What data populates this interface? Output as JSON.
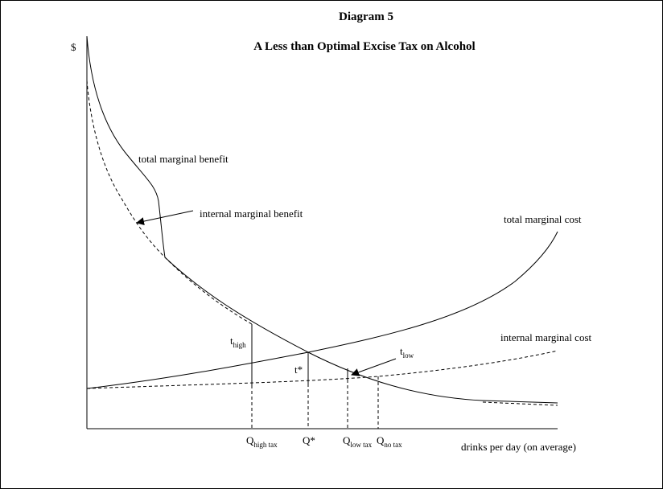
{
  "diagram": {
    "title": "Diagram 5",
    "subtitle": "A Less than Optimal Excise Tax on Alcohol",
    "y_axis_label": "$",
    "x_axis_label": "drinks per day (on average)",
    "curves": {
      "total_marginal_benefit": "total marginal benefit",
      "internal_marginal_benefit": "internal marginal benefit",
      "total_marginal_cost": "total marginal cost",
      "internal_marginal_cost": "internal marginal cost"
    },
    "tax_labels": {
      "t_high_main": "t",
      "t_high_sub": "high",
      "t_star": "t*",
      "t_low_main": "t",
      "t_low_sub": "low"
    },
    "quantity_labels": {
      "q_high_main": "Q",
      "q_high_sub": "high tax",
      "q_star": "Q*",
      "q_low_main": "Q",
      "q_low_sub": "low tax",
      "q_no_main": "Q",
      "q_no_sub": "no tax"
    }
  }
}
